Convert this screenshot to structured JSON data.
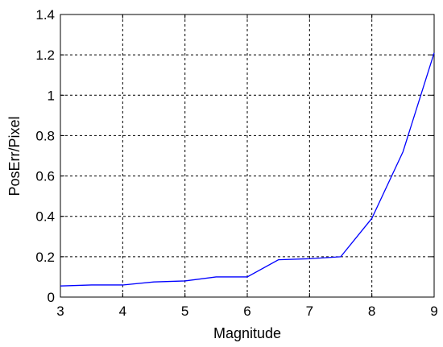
{
  "chart_data": {
    "type": "line",
    "title": "",
    "xlabel": "Magnitude",
    "ylabel": "PosErr/Pixel",
    "xlim": [
      3,
      9
    ],
    "ylim": [
      0,
      1.4
    ],
    "xticks": [
      3,
      4,
      5,
      6,
      7,
      8,
      9
    ],
    "yticks": [
      0,
      0.2,
      0.4,
      0.6,
      0.8,
      1,
      1.2,
      1.4
    ],
    "xtick_labels": [
      "3",
      "4",
      "5",
      "6",
      "7",
      "8",
      "9"
    ],
    "ytick_labels": [
      "0",
      "0.2",
      "0.4",
      "0.6",
      "0.8",
      "1",
      "1.2",
      "1.4"
    ],
    "grid": true,
    "series": [
      {
        "color": "#0000ff",
        "x": [
          3,
          3.5,
          4,
          4.5,
          5,
          5.5,
          6,
          6.5,
          7,
          7.5,
          8,
          8.5,
          9
        ],
        "y": [
          0.055,
          0.06,
          0.06,
          0.075,
          0.08,
          0.1,
          0.1,
          0.185,
          0.19,
          0.2,
          0.39,
          0.72,
          1.21
        ]
      }
    ]
  }
}
